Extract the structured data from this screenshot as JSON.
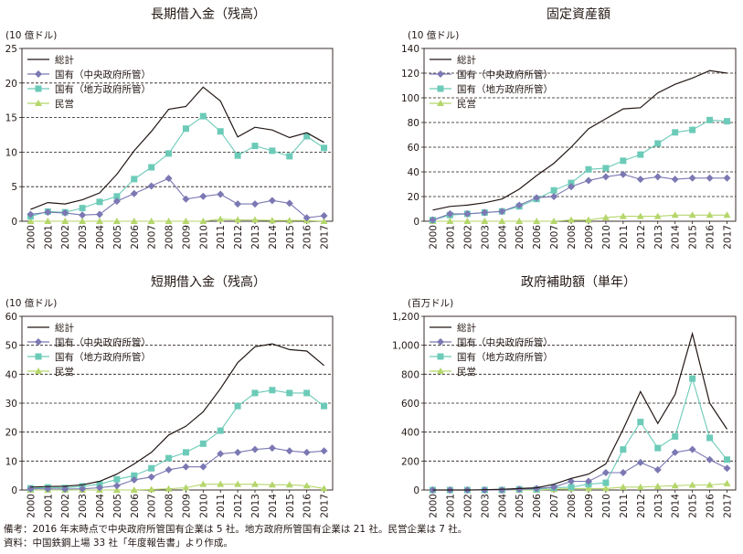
{
  "chart_data": [
    {
      "type": "line",
      "title": "長期借入金（残高）",
      "unit_label": "(10 億ドル)",
      "x": [
        "2000",
        "2001",
        "2002",
        "2003",
        "2004",
        "2005",
        "2006",
        "2007",
        "2008",
        "2009",
        "2010",
        "2011",
        "2012",
        "2013",
        "2014",
        "2015",
        "2016",
        "2017"
      ],
      "ylim": [
        0,
        25
      ],
      "yticks": [
        "0",
        "5",
        "10",
        "15",
        "20",
        "25"
      ],
      "grid": "dashed horizontal",
      "legend": "top-left",
      "series": [
        {
          "name": "総計",
          "color": "#231815",
          "marker": "none",
          "values": [
            1.7,
            2.7,
            2.5,
            3.1,
            4.1,
            6.8,
            10.2,
            13.0,
            16.2,
            16.6,
            19.4,
            17.4,
            12.2,
            13.6,
            13.2,
            12.1,
            12.8,
            11.4
          ]
        },
        {
          "name": "国有（中央政府所管）",
          "color": "#7b78b3",
          "marker": "diamond",
          "values": [
            1.0,
            1.3,
            1.2,
            0.9,
            1.0,
            2.9,
            4.0,
            5.1,
            6.2,
            3.2,
            3.6,
            3.9,
            2.5,
            2.5,
            3.0,
            2.6,
            0.5,
            0.8
          ]
        },
        {
          "name": "国有（地方政府所管）",
          "color": "#6ccbb8",
          "marker": "square",
          "values": [
            0.7,
            1.4,
            1.3,
            1.9,
            2.8,
            3.6,
            6.1,
            7.8,
            9.8,
            13.4,
            15.2,
            13.0,
            9.5,
            10.9,
            10.2,
            9.4,
            12.3,
            10.6
          ]
        },
        {
          "name": "民営",
          "color": "#b5d66b",
          "marker": "triangle",
          "values": [
            0,
            0,
            0,
            0,
            0,
            0,
            0,
            0,
            0,
            0,
            0,
            0.3,
            0.2,
            0.2,
            0.1,
            0.1,
            0.1,
            0
          ]
        }
      ]
    },
    {
      "type": "line",
      "title": "固定資産額",
      "unit_label": "(10 億ドル)",
      "x": [
        "2000",
        "2001",
        "2002",
        "2003",
        "2004",
        "2005",
        "2006",
        "2007",
        "2008",
        "2009",
        "2010",
        "2011",
        "2012",
        "2013",
        "2014",
        "2015",
        "2016",
        "2017"
      ],
      "ylim": [
        0,
        140
      ],
      "yticks": [
        "0",
        "20",
        "40",
        "60",
        "80",
        "100",
        "120",
        "140"
      ],
      "grid": "dashed horizontal",
      "legend": "top-left",
      "series": [
        {
          "name": "総計",
          "color": "#231815",
          "marker": "none",
          "values": [
            9,
            12,
            13,
            15,
            18,
            26,
            37,
            47,
            60,
            75,
            83,
            91,
            92,
            104,
            111,
            116,
            122,
            120
          ]
        },
        {
          "name": "国有（中央政府所管）",
          "color": "#7b78b3",
          "marker": "diamond",
          "values": [
            1,
            6,
            6,
            7,
            8,
            13,
            19,
            20,
            28,
            33,
            36,
            38,
            34,
            36,
            34,
            35,
            35,
            35
          ]
        },
        {
          "name": "国有（地方政府所管）",
          "color": "#6ccbb8",
          "marker": "square",
          "values": [
            1,
            5,
            6,
            7,
            8,
            12,
            18,
            25,
            31,
            42,
            43,
            49,
            54,
            63,
            72,
            74,
            82,
            81
          ]
        },
        {
          "name": "民営",
          "color": "#b5d66b",
          "marker": "triangle",
          "values": [
            0,
            0,
            0,
            0,
            0,
            0,
            0,
            0,
            1,
            1,
            3,
            4,
            4,
            4,
            5,
            5,
            5,
            5
          ]
        }
      ]
    },
    {
      "type": "line",
      "title": "短期借入金（残高）",
      "unit_label": "(10 億ドル)",
      "x": [
        "2000",
        "2001",
        "2002",
        "2003",
        "2004",
        "2005",
        "2006",
        "2007",
        "2008",
        "2009",
        "2010",
        "2011",
        "2012",
        "2013",
        "2014",
        "2015",
        "2016",
        "2017"
      ],
      "ylim": [
        0,
        60
      ],
      "yticks": [
        "0",
        "10",
        "20",
        "30",
        "40",
        "50",
        "60"
      ],
      "grid": "dashed horizontal",
      "legend": "top-left",
      "series": [
        {
          "name": "総計",
          "color": "#231815",
          "marker": "none",
          "values": [
            1,
            1.2,
            1.3,
            1.8,
            3,
            5.5,
            9,
            13,
            19,
            22,
            27,
            35,
            44,
            49.5,
            50.5,
            48.5,
            48,
            43
          ]
        },
        {
          "name": "国有（中央政府所管）",
          "color": "#7b78b3",
          "marker": "diamond",
          "values": [
            0.4,
            0.4,
            0.3,
            0.4,
            0.8,
            1.5,
            3.5,
            4.5,
            7,
            8,
            8,
            12.5,
            13,
            14,
            14.5,
            13.5,
            13,
            13.5
          ]
        },
        {
          "name": "国有（地方政府所管）",
          "color": "#6ccbb8",
          "marker": "square",
          "values": [
            0.6,
            0.9,
            0.7,
            1.3,
            2,
            3.7,
            5,
            7.5,
            11,
            13,
            16,
            20.5,
            29,
            33.5,
            34.5,
            33.5,
            33.5,
            29
          ]
        },
        {
          "name": "民営",
          "color": "#b5d66b",
          "marker": "triangle",
          "values": [
            0,
            0,
            0,
            0,
            0,
            0,
            0,
            0.2,
            0.4,
            0.8,
            2,
            2,
            2,
            2,
            1.8,
            1.8,
            1.5,
            0.5
          ]
        }
      ]
    },
    {
      "type": "line",
      "title": "政府補助額（単年）",
      "unit_label": "(百万ドル)",
      "x": [
        "2000",
        "2001",
        "2002",
        "2003",
        "2004",
        "2005",
        "2006",
        "2007",
        "2008",
        "2009",
        "2010",
        "2011",
        "2012",
        "2013",
        "2014",
        "2015",
        "2016",
        "2017"
      ],
      "ylim": [
        0,
        1200
      ],
      "yticks": [
        "0",
        "200",
        "400",
        "600",
        "800",
        "1,000",
        "1,200"
      ],
      "grid": "dashed horizontal",
      "legend": "top-left",
      "series": [
        {
          "name": "総計",
          "color": "#231815",
          "marker": "none",
          "values": [
            0,
            0,
            0,
            2,
            5,
            10,
            15,
            40,
            80,
            110,
            180,
            420,
            680,
            460,
            660,
            1080,
            600,
            420
          ]
        },
        {
          "name": "国有（中央政府所管）",
          "color": "#7b78b3",
          "marker": "diamond",
          "values": [
            0,
            0,
            0,
            0,
            0,
            5,
            10,
            20,
            60,
            60,
            120,
            120,
            190,
            140,
            260,
            280,
            210,
            150
          ]
        },
        {
          "name": "国有（地方政府所管）",
          "color": "#6ccbb8",
          "marker": "square",
          "values": [
            0,
            0,
            0,
            0,
            0,
            5,
            5,
            15,
            20,
            40,
            50,
            280,
            470,
            290,
            370,
            770,
            360,
            210
          ]
        },
        {
          "name": "民営",
          "color": "#b5d66b",
          "marker": "triangle",
          "values": [
            0,
            0,
            0,
            0,
            0,
            0,
            0,
            5,
            10,
            10,
            10,
            20,
            20,
            25,
            30,
            35,
            35,
            45
          ]
        }
      ]
    }
  ],
  "notes": {
    "line1": "備考：2016 年末時点で中央政府所管国有企業は 5 社。地方政府所管国有企業は 21 社。民営企業は 7 社。",
    "line2": "資料：中国鉄鋼上場 33 社「年度報告書」より作成。"
  }
}
